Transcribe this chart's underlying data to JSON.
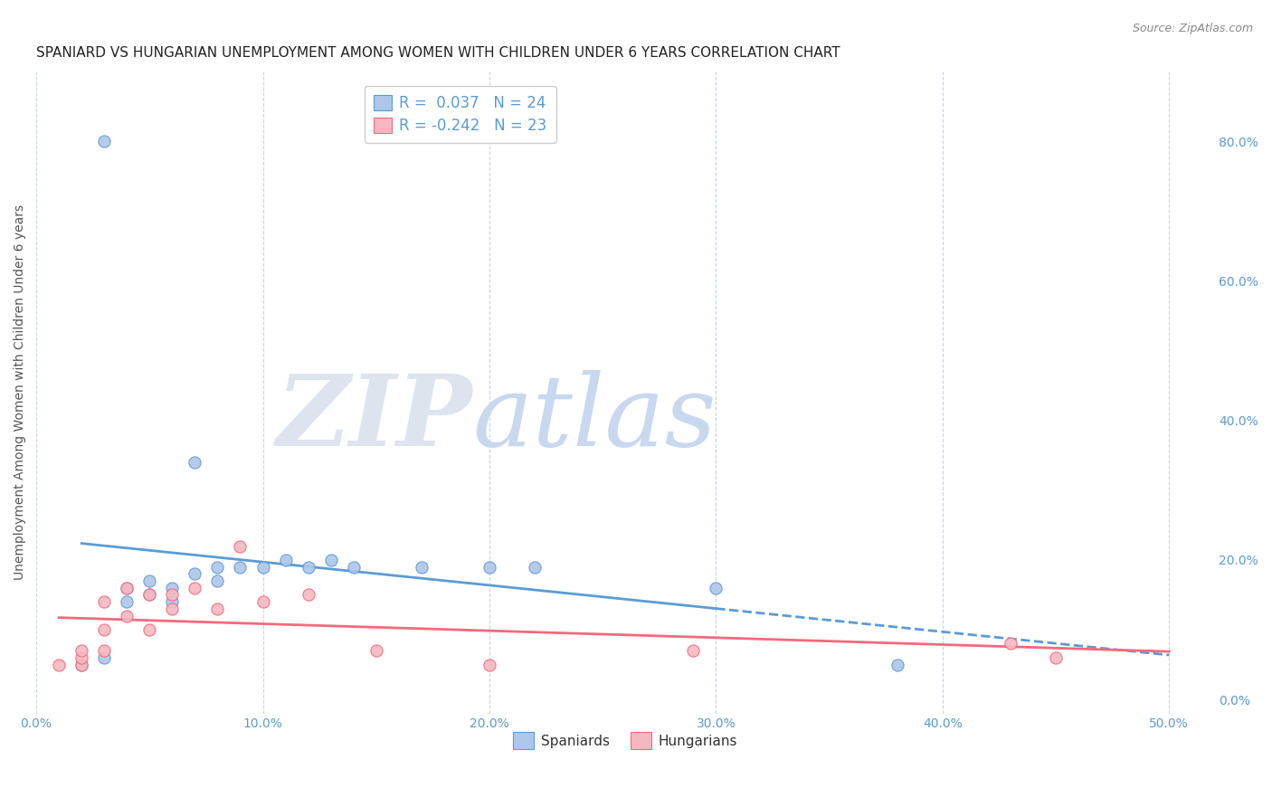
{
  "title": "SPANIARD VS HUNGARIAN UNEMPLOYMENT AMONG WOMEN WITH CHILDREN UNDER 6 YEARS CORRELATION CHART",
  "source": "Source: ZipAtlas.com",
  "ylabel": "Unemployment Among Women with Children Under 6 years",
  "xlim": [
    0.0,
    0.52
  ],
  "ylim": [
    -0.02,
    0.9
  ],
  "legend_entries": [
    {
      "label": "R =  0.037   N = 24",
      "color": "#aec6e8"
    },
    {
      "label": "R = -0.242   N = 23",
      "color": "#f4b8c1"
    }
  ],
  "spaniards_x": [
    0.03,
    0.07,
    0.02,
    0.03,
    0.04,
    0.04,
    0.05,
    0.05,
    0.06,
    0.06,
    0.07,
    0.08,
    0.08,
    0.09,
    0.1,
    0.11,
    0.12,
    0.13,
    0.14,
    0.17,
    0.2,
    0.22,
    0.3,
    0.38
  ],
  "spaniards_y": [
    0.8,
    0.34,
    0.05,
    0.06,
    0.14,
    0.16,
    0.15,
    0.17,
    0.14,
    0.16,
    0.18,
    0.17,
    0.19,
    0.19,
    0.19,
    0.2,
    0.19,
    0.2,
    0.19,
    0.19,
    0.19,
    0.19,
    0.16,
    0.05
  ],
  "hungarians_x": [
    0.01,
    0.02,
    0.02,
    0.02,
    0.03,
    0.03,
    0.03,
    0.04,
    0.04,
    0.05,
    0.05,
    0.06,
    0.06,
    0.07,
    0.08,
    0.09,
    0.1,
    0.12,
    0.15,
    0.2,
    0.29,
    0.43,
    0.45
  ],
  "hungarians_y": [
    0.05,
    0.05,
    0.06,
    0.07,
    0.07,
    0.1,
    0.14,
    0.12,
    0.16,
    0.1,
    0.15,
    0.13,
    0.15,
    0.16,
    0.13,
    0.22,
    0.14,
    0.15,
    0.07,
    0.05,
    0.07,
    0.08,
    0.06
  ],
  "spaniard_color": "#aec6e8",
  "hungarian_color": "#f4b8c1",
  "spaniard_line_color": "#5b9bd5",
  "hungarian_line_color": "#f4697b",
  "background_color": "#ffffff",
  "grid_color": "#c8d4e8",
  "watermark_zip": "ZIP",
  "watermark_atlas": "atlas",
  "watermark_zip_color": "#dde4ee",
  "watermark_atlas_color": "#c8d8ee",
  "title_fontsize": 11,
  "axis_label_fontsize": 10,
  "tick_fontsize": 10,
  "legend_fontsize": 12,
  "source_fontsize": 9
}
